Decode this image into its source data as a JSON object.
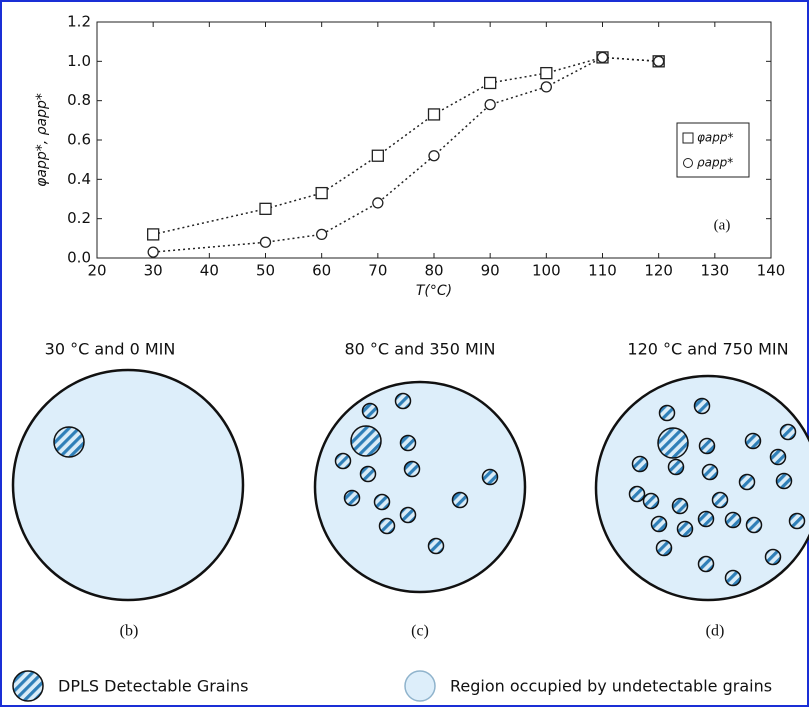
{
  "chart_data": {
    "type": "line",
    "x_label": "T(°C)",
    "y_label": "φapp*, ρapp*",
    "annotation": "(a)",
    "xlim": [
      20,
      140
    ],
    "xticks": [
      20,
      30,
      40,
      50,
      60,
      70,
      80,
      90,
      100,
      110,
      120,
      130,
      140
    ],
    "ylim": [
      0,
      1.2
    ],
    "yticks": [
      {
        "value": 0,
        "label": "0.0"
      },
      0.2,
      0.4,
      0.6,
      0.8,
      {
        "value": 1,
        "label": "1.0"
      },
      1.2
    ],
    "legend_position": "right",
    "x": [
      30,
      50,
      60,
      70,
      80,
      90,
      100,
      110,
      120
    ],
    "series": [
      {
        "name": "φapp*",
        "marker": "square",
        "color": "#222222",
        "values": [
          0.12,
          0.25,
          0.33,
          0.52,
          0.73,
          0.89,
          0.94,
          1.02,
          1.0
        ]
      },
      {
        "name": "ρapp*",
        "marker": "circle",
        "color": "#222222",
        "values": [
          0.03,
          0.08,
          0.12,
          0.28,
          0.52,
          0.78,
          0.87,
          1.02,
          1.0
        ]
      }
    ]
  },
  "diagram": {
    "panels": [
      {
        "title": "30 °C and 0 MIN",
        "caption": "(b)"
      },
      {
        "title": "80 °C and 350 MIN",
        "caption": "(c)"
      },
      {
        "title": "120 °C and 750 MIN",
        "caption": "(d)"
      }
    ],
    "legend": [
      "DPLS Detectable Grains",
      "Region occupied by undetectable grains"
    ]
  }
}
